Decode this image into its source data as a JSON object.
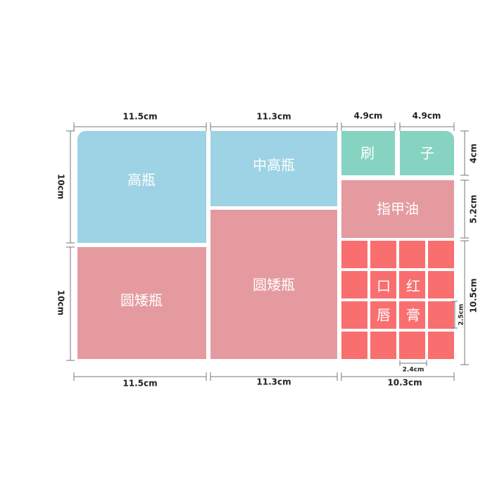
{
  "dimensions": {
    "top": [
      "11.5cm",
      "11.3cm",
      "4.9cm",
      "4.9cm"
    ],
    "left": [
      "10cm",
      "10cm"
    ],
    "right": [
      "4cm",
      "5.2cm",
      "10.5cm"
    ],
    "bottom": [
      "11.5cm",
      "11.3cm",
      "10.3cm"
    ],
    "cell_width": "2.4cm",
    "cell_height": "2.5cm"
  },
  "compartments": [
    "高瓶",
    "中高瓶",
    "刷",
    "子",
    "指甲油",
    "圆矮瓶",
    "圆矮瓶"
  ],
  "lipstick": [
    "口",
    "红",
    "唇",
    "膏"
  ]
}
